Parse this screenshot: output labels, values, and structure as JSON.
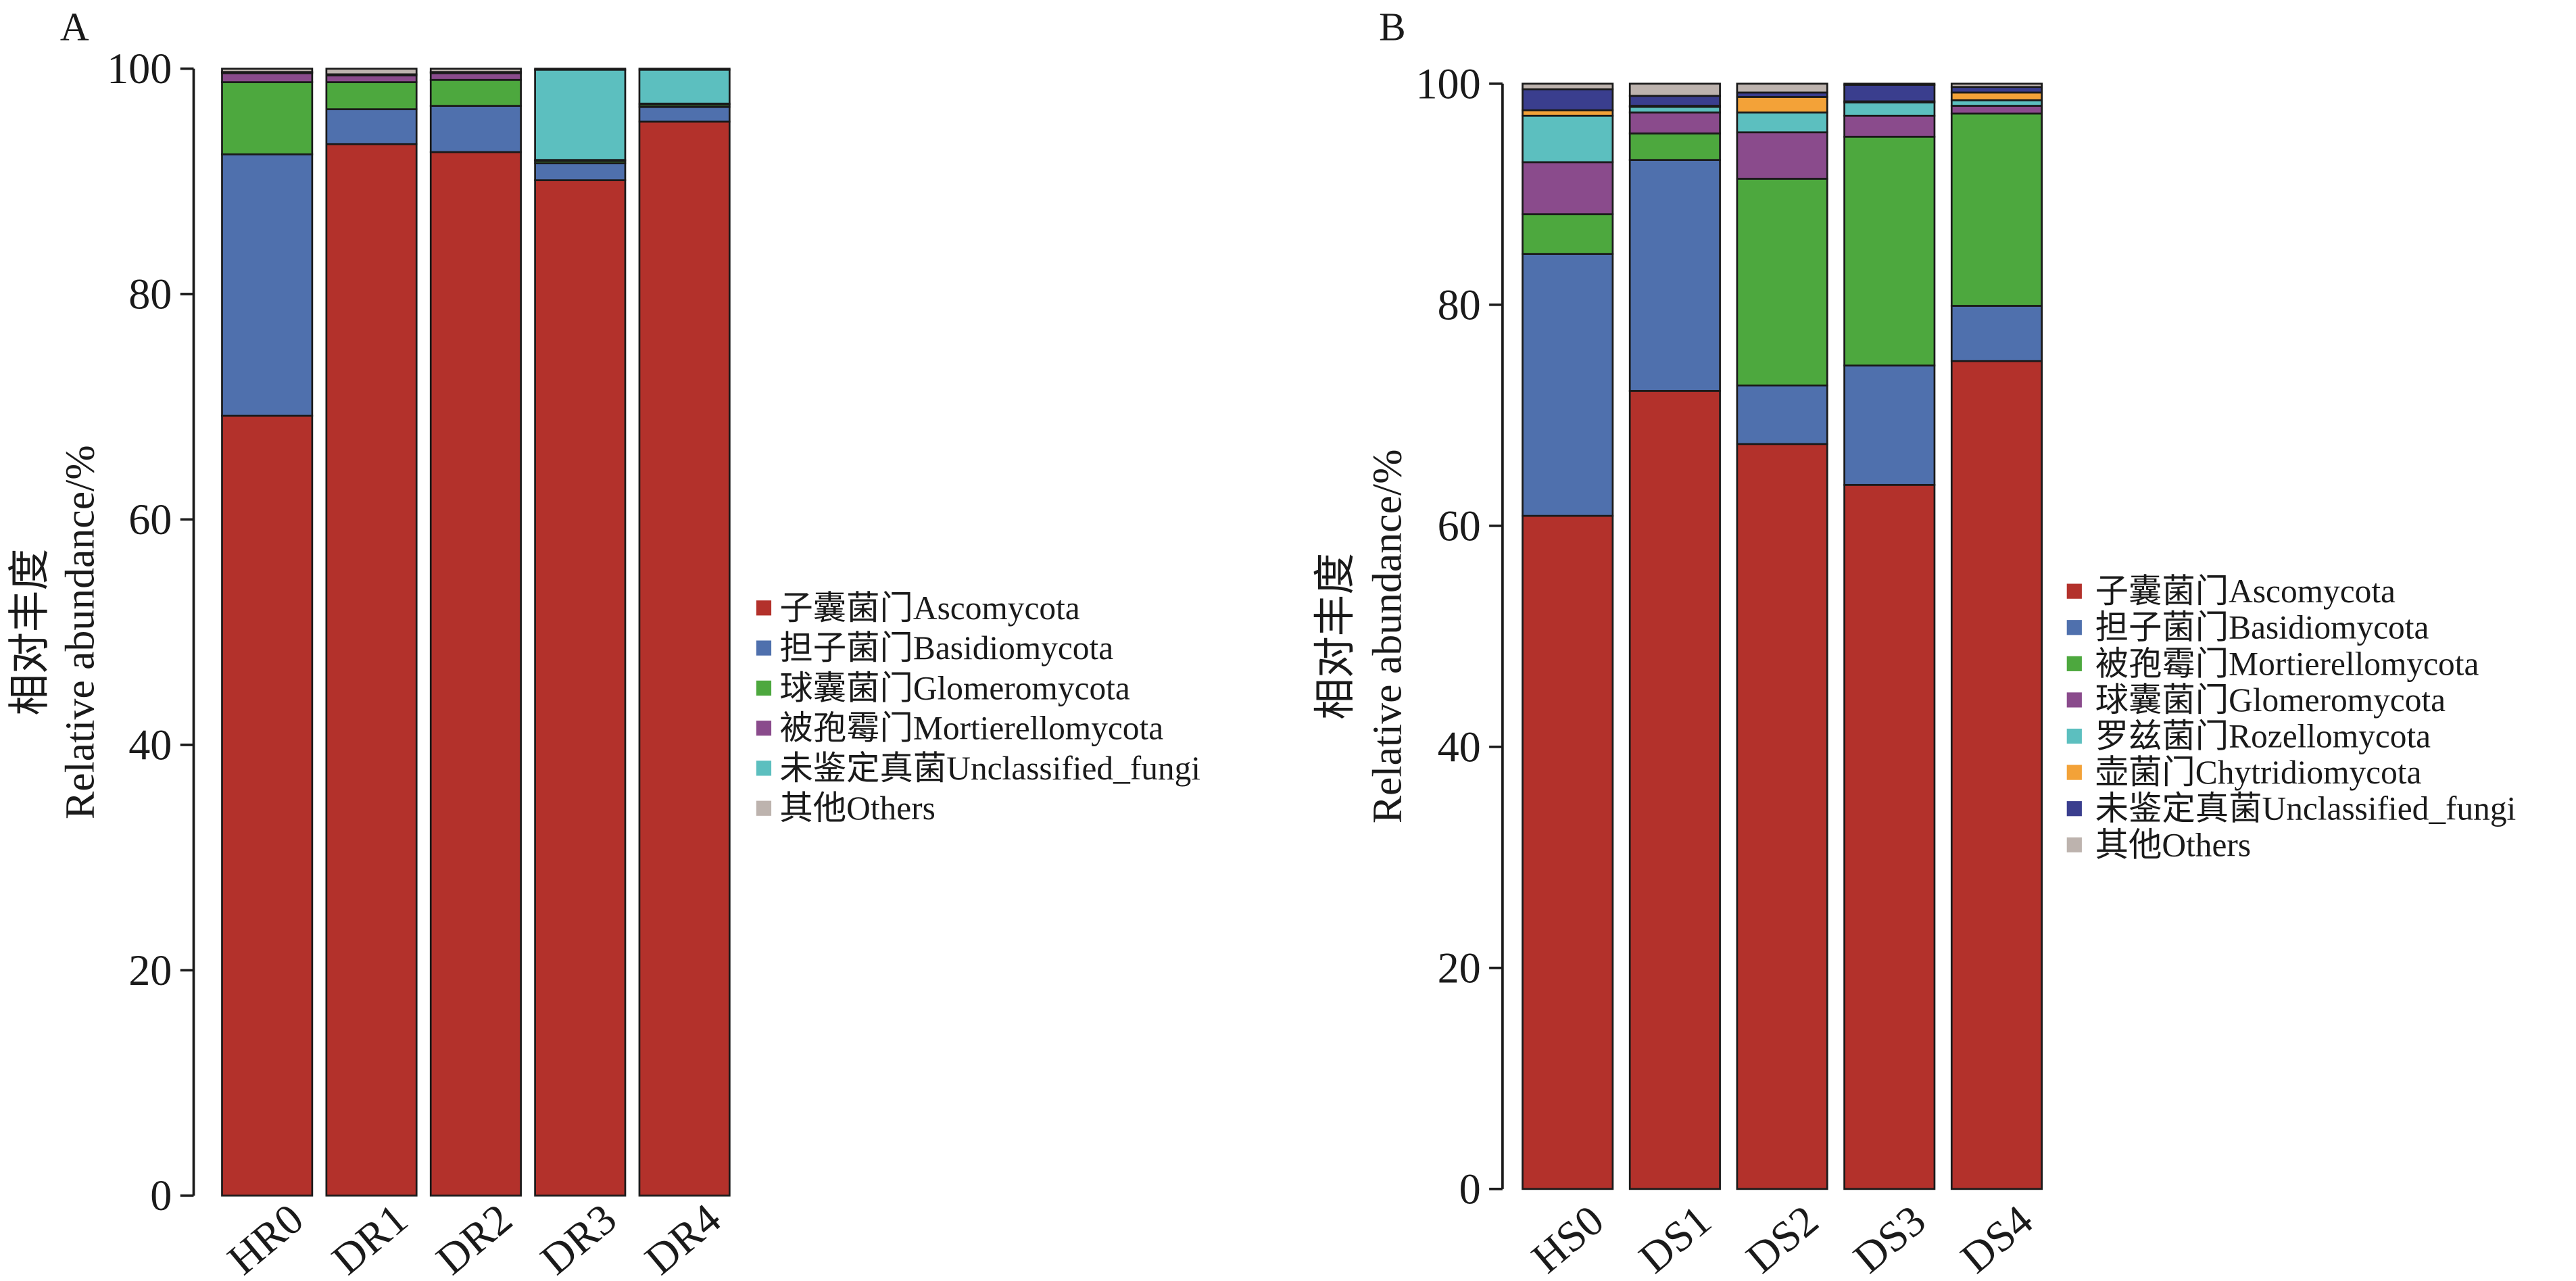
{
  "chart_data": [
    {
      "panel_label": "A",
      "type": "bar",
      "stacked": true,
      "categories": [
        "HR0",
        "DR1",
        "DR2",
        "DR3",
        "DR4"
      ],
      "xlabel": "",
      "ylabel": [
        "相对丰度",
        "Relative abundance/%"
      ],
      "ylim": [
        0,
        100
      ],
      "yticks": [
        0,
        20,
        40,
        60,
        80,
        100
      ],
      "grid": false,
      "legend_position": "right",
      "series": [
        {
          "name": "子囊菌门Ascomycota",
          "color": "#B3312B",
          "values": [
            69.2,
            93.3,
            92.6,
            90.1,
            95.3
          ]
        },
        {
          "name": "担子菌门Basidiomycota",
          "color": "#4F70AD",
          "values": [
            23.2,
            3.1,
            4.1,
            1.5,
            1.3
          ]
        },
        {
          "name": "球囊菌门Glomeromycota",
          "color": "#4DA83E",
          "values": [
            6.4,
            2.4,
            2.3,
            0.2,
            0.2
          ]
        },
        {
          "name": "被孢霉门Mortierellomycota",
          "color": "#8A4B8C",
          "values": [
            0.8,
            0.6,
            0.6,
            0.1,
            0.1
          ]
        },
        {
          "name": "未鉴定真菌Unclassified_fungi",
          "color": "#5CBFBF",
          "values": [
            0.1,
            0.1,
            0.1,
            8.0,
            3.0
          ]
        },
        {
          "name": "其他Others",
          "color": "#BDB3AE",
          "values": [
            0.3,
            0.5,
            0.3,
            0.1,
            0.1
          ]
        }
      ]
    },
    {
      "panel_label": "B",
      "type": "bar",
      "stacked": true,
      "categories": [
        "HS0",
        "DS1",
        "DS2",
        "DS3",
        "DS4"
      ],
      "xlabel": "",
      "ylabel": [
        "相对丰度",
        "Relative abundance/%"
      ],
      "ylim": [
        0,
        100
      ],
      "yticks": [
        0,
        20,
        40,
        60,
        80,
        100
      ],
      "grid": false,
      "legend_position": "right",
      "series": [
        {
          "name": "子囊菌门Ascomycota",
          "color": "#B3312B",
          "values": [
            60.9,
            72.2,
            67.4,
            63.7,
            74.9
          ]
        },
        {
          "name": "担子菌门Basidiomycota",
          "color": "#4F70AD",
          "values": [
            23.7,
            20.9,
            5.3,
            10.8,
            5.0
          ]
        },
        {
          "name": "被孢霉门Mortierellomycota",
          "color": "#4DA83E",
          "values": [
            3.6,
            2.4,
            18.7,
            20.7,
            17.4
          ]
        },
        {
          "name": "球囊菌门Glomeromycota",
          "color": "#8A4B8C",
          "values": [
            4.7,
            1.9,
            4.2,
            1.9,
            0.7
          ]
        },
        {
          "name": "罗兹菌门Rozellomycota",
          "color": "#5CBFBF",
          "values": [
            4.2,
            0.5,
            1.8,
            1.2,
            0.5
          ]
        },
        {
          "name": "壶菌门Chytridiomycota",
          "color": "#F3A238",
          "values": [
            0.5,
            0.1,
            1.4,
            0.1,
            0.7
          ]
        },
        {
          "name": "未鉴定真菌Unclassified_fungi",
          "color": "#3A3E8E",
          "values": [
            1.9,
            0.9,
            0.4,
            1.5,
            0.5
          ]
        },
        {
          "name": "其他Others",
          "color": "#BDB3AE",
          "values": [
            0.5,
            1.1,
            0.8,
            0.1,
            0.3
          ]
        }
      ]
    }
  ]
}
